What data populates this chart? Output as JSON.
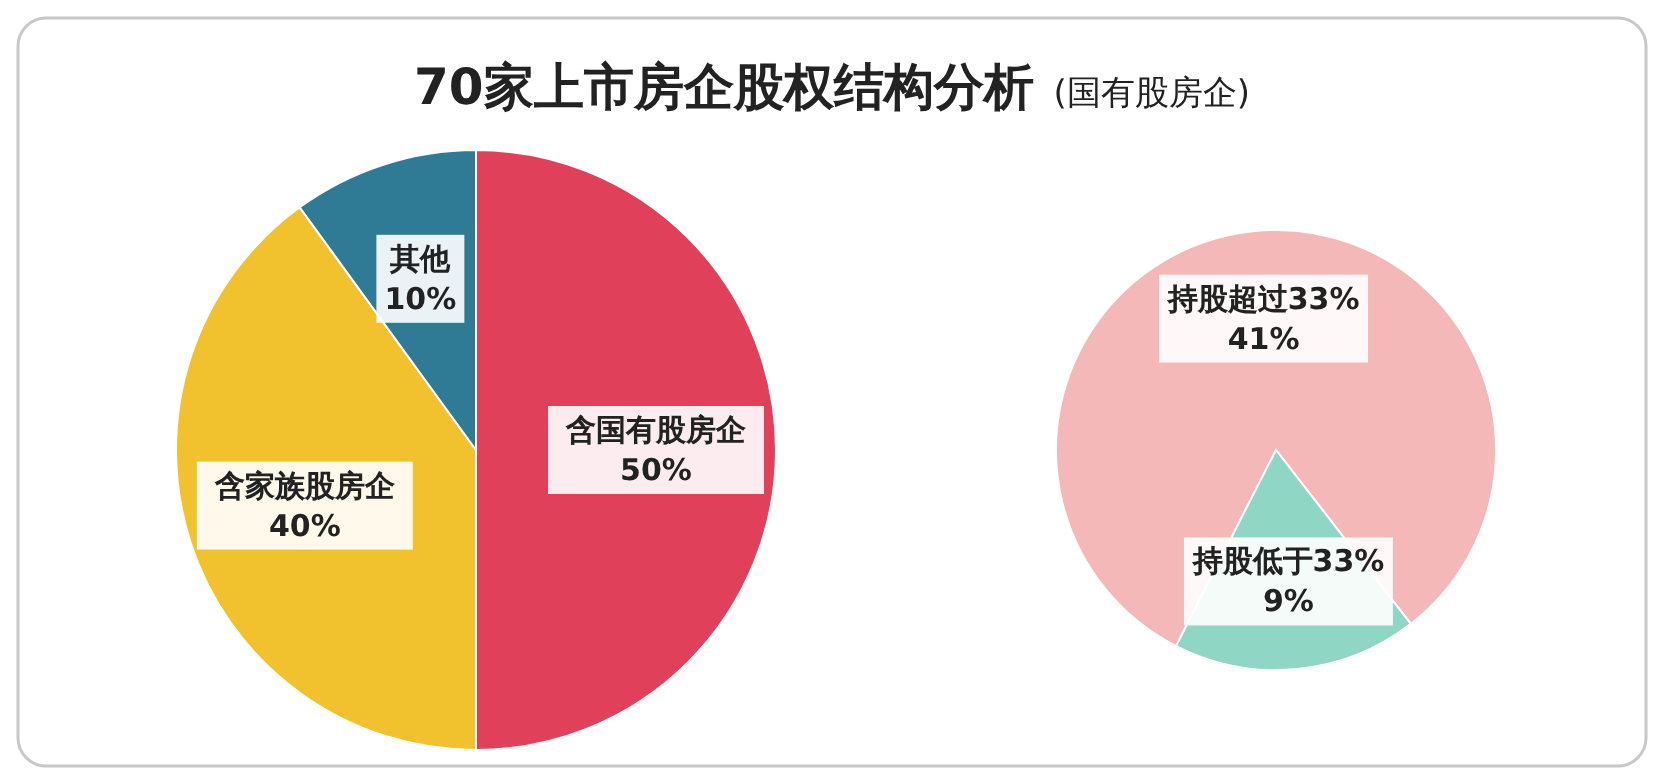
{
  "chart_data": [
    {
      "type": "pie",
      "title": "70家上市房企股权结构分析",
      "subtitle": "(国有股房企)",
      "categories": [
        "含国有股房企",
        "含家族股房企",
        "其他"
      ],
      "values": [
        50,
        40,
        10
      ],
      "value_labels": [
        "50%",
        "40%",
        "10%"
      ],
      "colors": [
        "#e0405a",
        "#f2c12e",
        "#2f7a94"
      ]
    },
    {
      "type": "pie",
      "categories": [
        "持股超过33%",
        "持股低于33%"
      ],
      "values": [
        41,
        9
      ],
      "value_labels": [
        "41%",
        "9%"
      ],
      "colors": [
        "#f4b8b8",
        "#8fd6c4"
      ]
    }
  ]
}
